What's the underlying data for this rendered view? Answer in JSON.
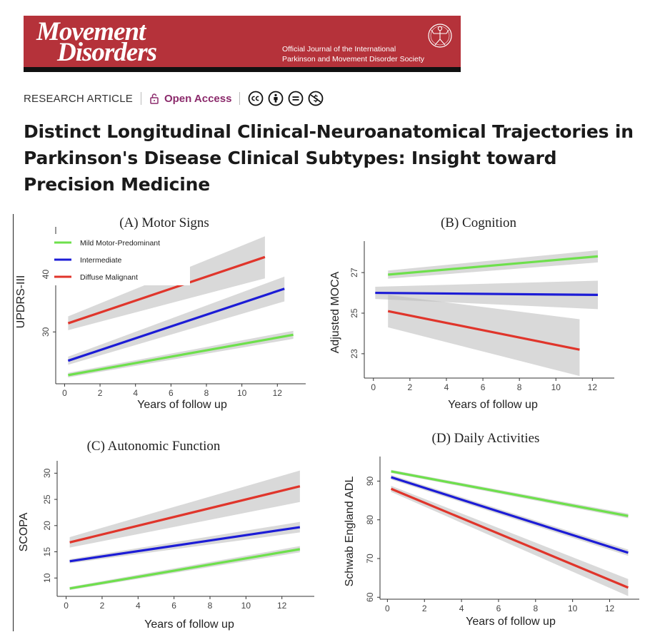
{
  "journal": {
    "name_line1": "Movement",
    "name_line2": "Disorders",
    "description_line1": "Official Journal of the International",
    "description_line2": "Parkinson and Movement Disorder Society",
    "banner_color": "#b5323a"
  },
  "article": {
    "type": "RESEARCH ARTICLE",
    "access": "Open Access",
    "access_color": "#8b2a6b",
    "license_icons": [
      "cc-icon",
      "by-icon",
      "nd-icon",
      "nc-icon"
    ],
    "title": "Distinct Longitudinal Clinical-Neuroanatomical Trajectories in Parkinson's Disease Clinical Subtypes: Insight toward Precision Medicine"
  },
  "legend": {
    "items": [
      {
        "label": "Mild Motor-Predominant",
        "color": "#6ee04c"
      },
      {
        "label": "Intermediate",
        "color": "#1c1cd6"
      },
      {
        "label": "Diffuse Malignant",
        "color": "#e0352b"
      }
    ]
  },
  "chart_data": [
    {
      "type": "line",
      "title": "(A) Motor Signs",
      "xlabel": "Years of follow up",
      "ylabel": "UPDRS-III",
      "xlim": [
        -0.5,
        13.6
      ],
      "ylim": [
        21,
        47
      ],
      "xticks": [
        0,
        2,
        4,
        6,
        8,
        10,
        12
      ],
      "yticks": [
        30,
        40
      ],
      "legend": [
        "Mild Motor-Predominant",
        "Intermediate",
        "Diffuse Malignant"
      ],
      "series": [
        {
          "name": "Mild Motor-Predominant",
          "color": "#6ee04c",
          "x": [
            0.2,
            12.9
          ],
          "y": [
            22.5,
            29.5
          ],
          "ci_lo": [
            22.1,
            28.8
          ],
          "ci_hi": [
            22.9,
            30.2
          ]
        },
        {
          "name": "Intermediate",
          "color": "#1c1cd6",
          "x": [
            0.2,
            12.4
          ],
          "y": [
            25.0,
            37.5
          ],
          "ci_lo": [
            24.3,
            35.3
          ],
          "ci_hi": [
            25.7,
            39.6
          ]
        },
        {
          "name": "Diffuse Malignant",
          "color": "#e0352b",
          "x": [
            0.2,
            11.3
          ],
          "y": [
            31.5,
            43.0
          ],
          "ci_lo": [
            30.3,
            39.3
          ],
          "ci_hi": [
            32.7,
            46.6
          ]
        }
      ]
    },
    {
      "type": "line",
      "title": "(B) Cognition",
      "xlabel": "Years of follow up",
      "ylabel": "Adjusted MOCA",
      "xlim": [
        -0.5,
        13.2
      ],
      "ylim": [
        21.8,
        28.2
      ],
      "xticks": [
        0,
        2,
        4,
        6,
        8,
        10,
        12
      ],
      "yticks": [
        23,
        25,
        27
      ],
      "series": [
        {
          "name": "Mild Motor-Predominant",
          "color": "#6ee04c",
          "x": [
            0.8,
            12.3
          ],
          "y": [
            26.9,
            27.8
          ],
          "ci_lo": [
            26.7,
            27.5
          ],
          "ci_hi": [
            27.1,
            28.1
          ]
        },
        {
          "name": "Intermediate",
          "color": "#1c1cd6",
          "x": [
            0.1,
            12.3
          ],
          "y": [
            26.0,
            25.9
          ],
          "ci_lo": [
            25.7,
            25.2
          ],
          "ci_hi": [
            26.3,
            26.6
          ]
        },
        {
          "name": "Diffuse Malignant",
          "color": "#e0352b",
          "x": [
            0.8,
            11.3
          ],
          "y": [
            25.1,
            23.2
          ],
          "ci_lo": [
            24.3,
            21.9
          ],
          "ci_hi": [
            25.9,
            24.7
          ]
        }
      ]
    },
    {
      "type": "line",
      "title": "(C) Autonomic Function",
      "xlabel": "Years of follow up",
      "ylabel": "SCOPA",
      "xlim": [
        -0.5,
        13.8
      ],
      "ylim": [
        6.5,
        31
      ],
      "xticks": [
        0,
        2,
        4,
        6,
        8,
        10,
        12
      ],
      "yticks": [
        10,
        15,
        20,
        25,
        30
      ],
      "series": [
        {
          "name": "Mild Motor-Predominant",
          "color": "#6ee04c",
          "x": [
            0.2,
            13.0
          ],
          "y": [
            8.0,
            15.5
          ],
          "ci_lo": [
            7.7,
            14.9
          ],
          "ci_hi": [
            8.3,
            16.1
          ]
        },
        {
          "name": "Intermediate",
          "color": "#1c1cd6",
          "x": [
            0.2,
            13.0
          ],
          "y": [
            13.2,
            19.7
          ],
          "ci_lo": [
            12.8,
            18.7
          ],
          "ci_hi": [
            13.6,
            20.7
          ]
        },
        {
          "name": "Diffuse Malignant",
          "color": "#e0352b",
          "x": [
            0.2,
            13.0
          ],
          "y": [
            16.8,
            27.5
          ],
          "ci_lo": [
            15.8,
            24.5
          ],
          "ci_hi": [
            17.8,
            30.5
          ]
        }
      ]
    },
    {
      "type": "line",
      "title": "(D) Daily Activities",
      "xlabel": "Years of follow up",
      "ylabel": "Schwab England ADL",
      "xlim": [
        -0.4,
        13.6
      ],
      "ylim": [
        59.5,
        94.5
      ],
      "xticks": [
        0,
        2,
        4,
        6,
        8,
        10,
        12
      ],
      "yticks": [
        60,
        70,
        80,
        90
      ],
      "series": [
        {
          "name": "Mild Motor-Predominant",
          "color": "#6ee04c",
          "x": [
            0.2,
            13.0
          ],
          "y": [
            92.5,
            81.0
          ],
          "ci_lo": [
            92.1,
            80.4
          ],
          "ci_hi": [
            92.9,
            81.6
          ]
        },
        {
          "name": "Intermediate",
          "color": "#1c1cd6",
          "x": [
            0.2,
            13.0
          ],
          "y": [
            91.0,
            71.5
          ],
          "ci_lo": [
            90.4,
            70.7
          ],
          "ci_hi": [
            91.6,
            72.3
          ]
        },
        {
          "name": "Diffuse Malignant",
          "color": "#e0352b",
          "x": [
            0.2,
            13.0
          ],
          "y": [
            88.0,
            62.5
          ],
          "ci_lo": [
            87.2,
            60.3
          ],
          "ci_hi": [
            88.8,
            64.7
          ]
        }
      ]
    }
  ]
}
